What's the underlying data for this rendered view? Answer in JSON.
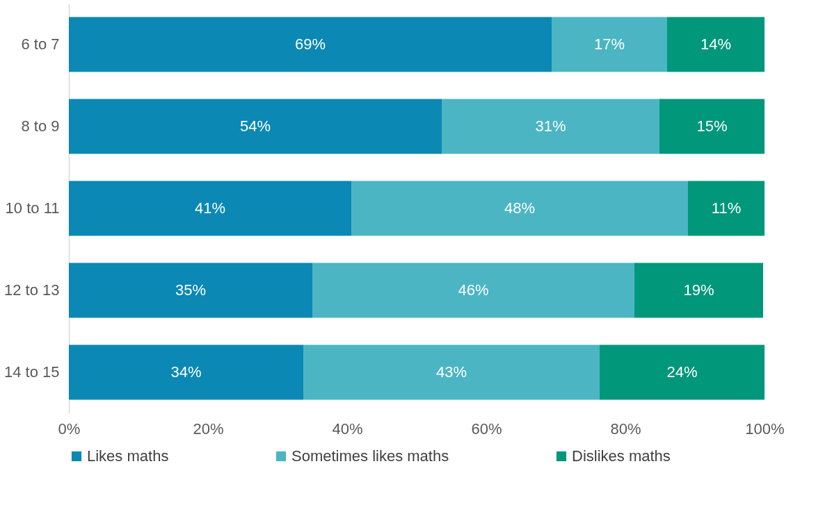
{
  "chart_data": {
    "type": "bar",
    "orientation": "horizontal",
    "stacked": true,
    "categories": [
      "6 to 7",
      "8 to 9",
      "10 to 11",
      "12 to 13",
      "14 to 15"
    ],
    "series": [
      {
        "name": "Likes maths",
        "color": "#0b88b3",
        "values": [
          69.4,
          53.6,
          40.6,
          35.0,
          33.7
        ],
        "value_labels": [
          "69%",
          "54%",
          "41%",
          "35%",
          "34%"
        ]
      },
      {
        "name": "Sometimes likes maths",
        "color": "#4bb5c4",
        "values": [
          16.6,
          31.3,
          48.4,
          46.3,
          42.6
        ],
        "value_labels": [
          "17%",
          "31%",
          "48%",
          "46%",
          "43%"
        ]
      },
      {
        "name": "Dislikes maths",
        "color": "#00977a",
        "values": [
          14.0,
          15.1,
          11.0,
          18.5,
          23.7
        ],
        "value_labels": [
          "14%",
          "15%",
          "11%",
          "19%",
          "24%"
        ]
      }
    ],
    "xlim": [
      0,
      100
    ],
    "xticks": [
      {
        "value": 0,
        "label": "0%"
      },
      {
        "value": 20,
        "label": "20%"
      },
      {
        "value": 40,
        "label": "40%"
      },
      {
        "value": 60,
        "label": "60%"
      },
      {
        "value": 80,
        "label": "80%"
      },
      {
        "value": 100,
        "label": "100%"
      }
    ],
    "grid": false,
    "legend": "bottom"
  }
}
